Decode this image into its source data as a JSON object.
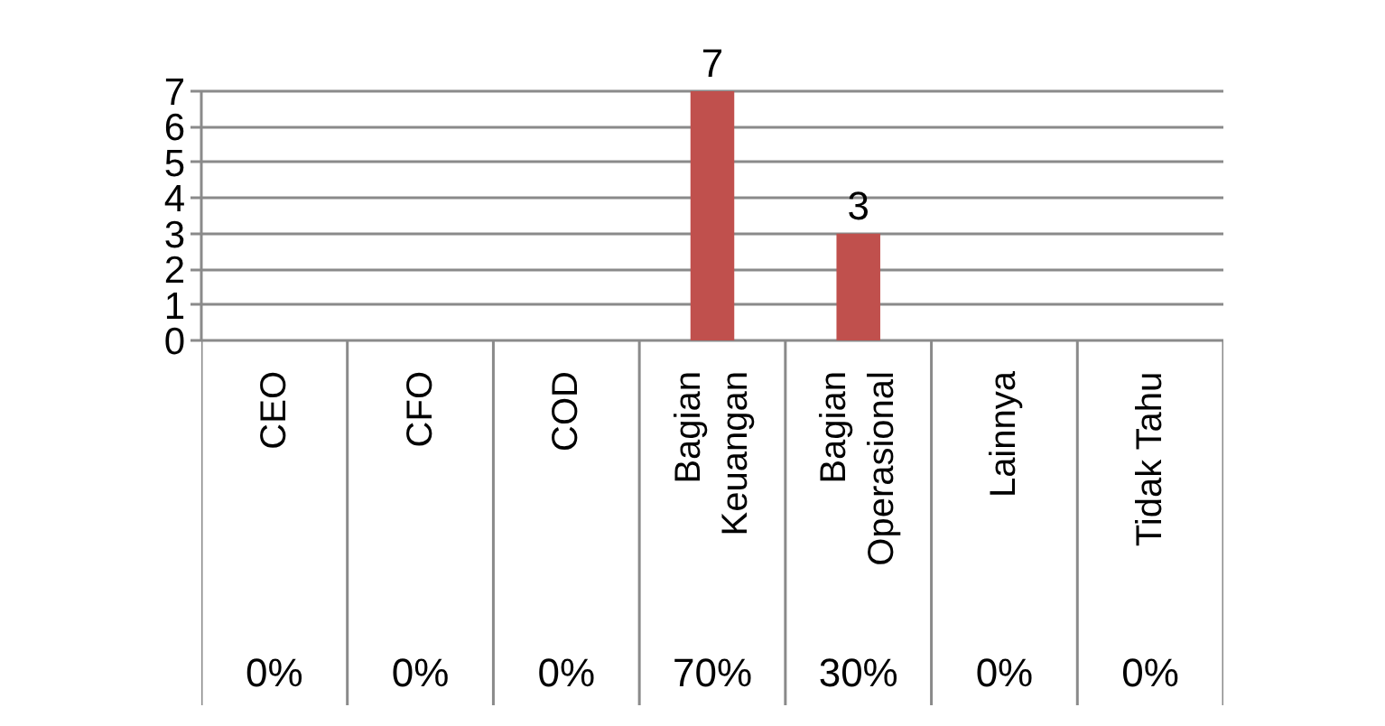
{
  "chart_data": {
    "type": "bar",
    "categories": [
      "CEO",
      "CFO",
      "COD",
      "Bagian Keuangan",
      "Bagian Operasional",
      "Lainnya",
      "Tidak Tahu"
    ],
    "values": [
      0,
      0,
      0,
      7,
      3,
      0,
      0
    ],
    "color": "#c0504d",
    "value_labels": [
      null,
      null,
      null,
      "7",
      "3",
      null,
      null
    ],
    "ylim": [
      0,
      7
    ],
    "yticks": [
      0,
      1,
      2,
      3,
      4,
      5,
      6,
      7
    ],
    "grid": "y",
    "annotations": [
      "0%",
      "0%",
      "0%",
      "70%",
      "30%",
      "0%",
      "0%"
    ]
  }
}
